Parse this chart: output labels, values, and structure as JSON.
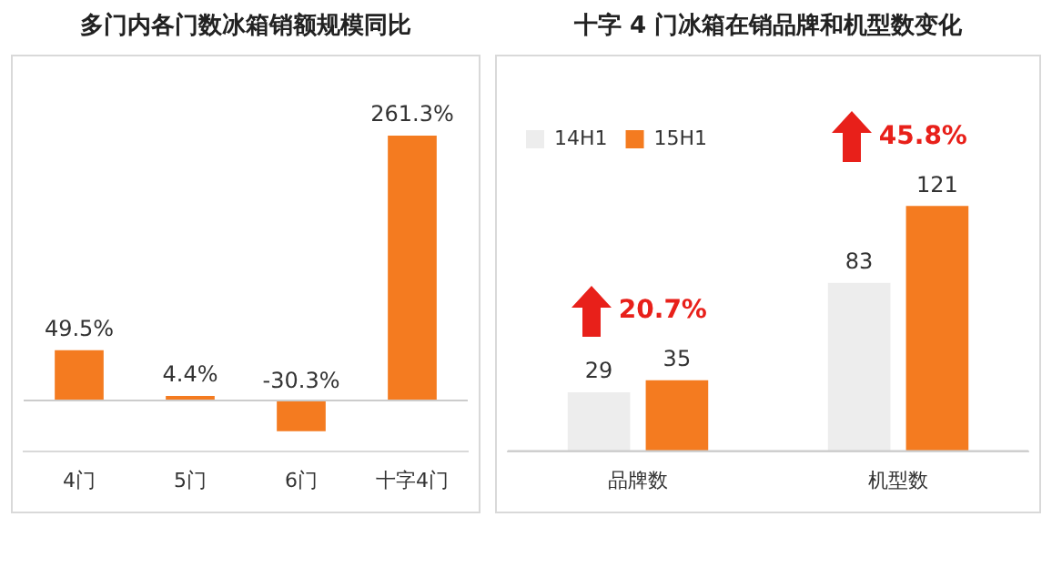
{
  "chart_data": [
    {
      "type": "bar",
      "title": "多门内各门数冰箱销额规模同比",
      "categories": [
        "4门",
        "5门",
        "6门",
        "十字4门"
      ],
      "values": [
        49.5,
        4.4,
        -30.3,
        261.3
      ],
      "value_labels": [
        "49.5%",
        "4.4%",
        "-30.3%",
        "261.3%"
      ],
      "color": "#f47b20",
      "grid": false,
      "legend": false
    },
    {
      "type": "bar",
      "title": "十字 4 门冰箱在销品牌和机型数变化",
      "categories": [
        "品牌数",
        "机型数"
      ],
      "series": [
        {
          "name": "14H1",
          "color": "#ededed",
          "values": [
            29,
            83
          ]
        },
        {
          "name": "15H1",
          "color": "#f47b20",
          "values": [
            35,
            121
          ]
        }
      ],
      "data_labels": true,
      "grid": false,
      "legend": "top left",
      "annotations": [
        "20.7%",
        "45.8%"
      ]
    }
  ]
}
